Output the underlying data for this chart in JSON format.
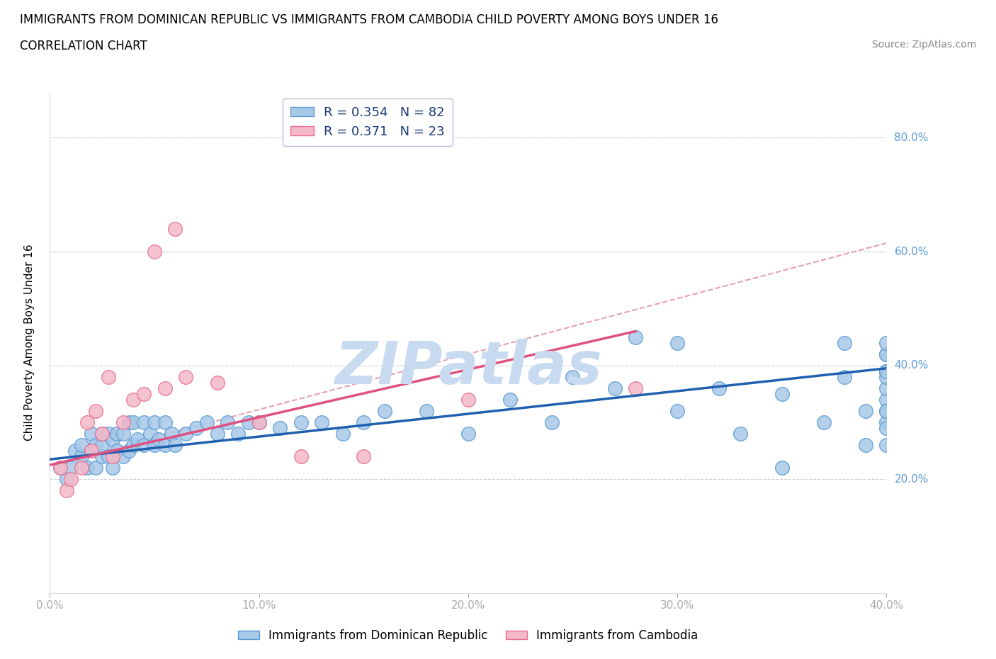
{
  "title_line1": "IMMIGRANTS FROM DOMINICAN REPUBLIC VS IMMIGRANTS FROM CAMBODIA CHILD POVERTY AMONG BOYS UNDER 16",
  "title_line2": "CORRELATION CHART",
  "source_text": "Source: ZipAtlas.com",
  "ylabel": "Child Poverty Among Boys Under 16",
  "xlim": [
    0.0,
    0.4
  ],
  "ylim": [
    0.0,
    0.88
  ],
  "xtick_labels": [
    "0.0%",
    "",
    "",
    "",
    "",
    "",
    "",
    "",
    "",
    "",
    "10.0%",
    "",
    "",
    "",
    "",
    "",
    "",
    "",
    "",
    "",
    "20.0%",
    "",
    "",
    "",
    "",
    "",
    "",
    "",
    "",
    "",
    "30.0%",
    "",
    "",
    "",
    "",
    "",
    "",
    "",
    "",
    "",
    "40.0%"
  ],
  "xtick_vals": [
    0.0,
    0.01,
    0.02,
    0.03,
    0.04,
    0.05,
    0.06,
    0.07,
    0.08,
    0.09,
    0.1,
    0.11,
    0.12,
    0.13,
    0.14,
    0.15,
    0.16,
    0.17,
    0.18,
    0.19,
    0.2,
    0.21,
    0.22,
    0.23,
    0.24,
    0.25,
    0.26,
    0.27,
    0.28,
    0.29,
    0.3,
    0.31,
    0.32,
    0.33,
    0.34,
    0.35,
    0.36,
    0.37,
    0.38,
    0.39,
    0.4
  ],
  "ytick_labels": [
    "20.0%",
    "40.0%",
    "60.0%",
    "80.0%"
  ],
  "ytick_vals": [
    0.2,
    0.4,
    0.6,
    0.8
  ],
  "blue_color": "#a8c8e8",
  "blue_edge_color": "#5b9bd5",
  "pink_color": "#f4b8c8",
  "pink_edge_color": "#e87090",
  "blue_line_color": "#2060b0",
  "pink_line_color": "#e05080",
  "dashed_line_color": "#e8a0b0",
  "grid_color": "#cccccc",
  "tick_label_color": "#5b9bd5",
  "watermark_color": "#c8daf0",
  "watermark_text": "ZIPatlas",
  "legend_r1": "R = 0.354",
  "legend_n1": "N = 82",
  "legend_r2": "R = 0.371",
  "legend_n2": "N = 23",
  "blue_r": 0.354,
  "blue_n": 82,
  "pink_r": 0.371,
  "pink_n": 23,
  "blue_scatter_x": [
    0.005,
    0.008,
    0.01,
    0.012,
    0.015,
    0.015,
    0.018,
    0.02,
    0.02,
    0.022,
    0.022,
    0.025,
    0.025,
    0.025,
    0.028,
    0.028,
    0.03,
    0.03,
    0.032,
    0.032,
    0.035,
    0.035,
    0.038,
    0.038,
    0.04,
    0.04,
    0.042,
    0.045,
    0.045,
    0.048,
    0.05,
    0.05,
    0.052,
    0.055,
    0.055,
    0.058,
    0.06,
    0.065,
    0.07,
    0.075,
    0.08,
    0.085,
    0.09,
    0.095,
    0.1,
    0.11,
    0.12,
    0.13,
    0.14,
    0.15,
    0.16,
    0.18,
    0.2,
    0.22,
    0.24,
    0.25,
    0.27,
    0.28,
    0.3,
    0.3,
    0.32,
    0.33,
    0.35,
    0.35,
    0.37,
    0.38,
    0.38,
    0.39,
    0.39,
    0.4,
    0.4,
    0.4,
    0.4,
    0.4,
    0.4,
    0.4,
    0.4,
    0.4,
    0.4,
    0.4,
    0.4,
    0.4
  ],
  "blue_scatter_y": [
    0.22,
    0.2,
    0.22,
    0.25,
    0.24,
    0.26,
    0.22,
    0.25,
    0.28,
    0.22,
    0.26,
    0.24,
    0.26,
    0.28,
    0.24,
    0.28,
    0.22,
    0.27,
    0.25,
    0.28,
    0.24,
    0.28,
    0.25,
    0.3,
    0.26,
    0.3,
    0.27,
    0.26,
    0.3,
    0.28,
    0.26,
    0.3,
    0.27,
    0.26,
    0.3,
    0.28,
    0.26,
    0.28,
    0.29,
    0.3,
    0.28,
    0.3,
    0.28,
    0.3,
    0.3,
    0.29,
    0.3,
    0.3,
    0.28,
    0.3,
    0.32,
    0.32,
    0.28,
    0.34,
    0.3,
    0.38,
    0.36,
    0.45,
    0.32,
    0.44,
    0.36,
    0.28,
    0.22,
    0.35,
    0.3,
    0.38,
    0.44,
    0.26,
    0.32,
    0.3,
    0.34,
    0.36,
    0.39,
    0.42,
    0.26,
    0.32,
    0.38,
    0.39,
    0.42,
    0.44,
    0.29,
    0.32
  ],
  "pink_scatter_x": [
    0.005,
    0.008,
    0.01,
    0.015,
    0.018,
    0.02,
    0.022,
    0.025,
    0.028,
    0.03,
    0.035,
    0.04,
    0.045,
    0.05,
    0.055,
    0.06,
    0.065,
    0.08,
    0.1,
    0.12,
    0.15,
    0.2,
    0.28
  ],
  "pink_scatter_y": [
    0.22,
    0.18,
    0.2,
    0.22,
    0.3,
    0.25,
    0.32,
    0.28,
    0.38,
    0.24,
    0.3,
    0.34,
    0.35,
    0.6,
    0.36,
    0.64,
    0.38,
    0.37,
    0.3,
    0.24,
    0.24,
    0.34,
    0.36
  ],
  "blue_trendline_x": [
    0.0,
    0.4
  ],
  "blue_trendline_y": [
    0.235,
    0.395
  ],
  "pink_trendline_x": [
    0.0,
    0.28
  ],
  "pink_trendline_y": [
    0.225,
    0.46
  ],
  "dashed_trendline_x": [
    0.0,
    0.4
  ],
  "dashed_trendline_y": [
    0.225,
    0.615
  ]
}
